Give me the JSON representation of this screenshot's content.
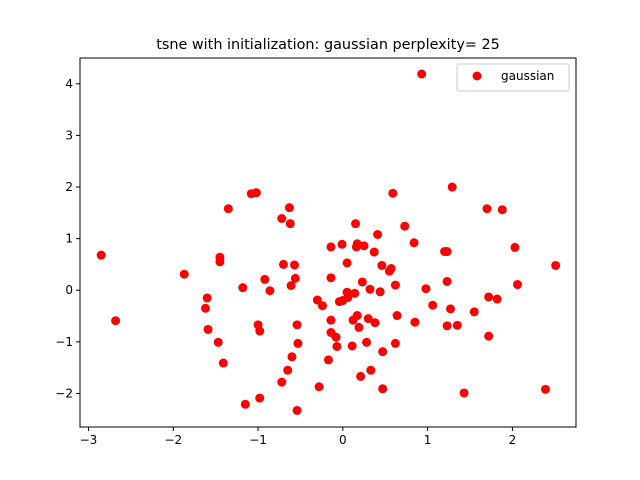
{
  "chart_data": {
    "type": "scatter",
    "title": "tsne with initialization: gaussian perplexity= 25",
    "xlabel": "",
    "ylabel": "",
    "xlim": [
      -3.1,
      2.75
    ],
    "ylim": [
      -2.65,
      4.5
    ],
    "xticks": [
      {
        "value": -3,
        "label": "−3"
      },
      {
        "value": -2,
        "label": "−2"
      },
      {
        "value": -1,
        "label": "−1"
      },
      {
        "value": 0,
        "label": "0"
      },
      {
        "value": 1,
        "label": "1"
      },
      {
        "value": 2,
        "label": "2"
      }
    ],
    "yticks": [
      {
        "value": -2,
        "label": "−2"
      },
      {
        "value": -1,
        "label": "−1"
      },
      {
        "value": 0,
        "label": "0"
      },
      {
        "value": 1,
        "label": "1"
      },
      {
        "value": 2,
        "label": "2"
      },
      {
        "value": 3,
        "label": "3"
      },
      {
        "value": 4,
        "label": "4"
      }
    ],
    "grid": false,
    "legend": {
      "position": "top-right",
      "entries": [
        "gaussian"
      ]
    },
    "series": [
      {
        "name": "gaussian",
        "color": "#ff0000",
        "points": [
          [
            0.93,
            4.19
          ],
          [
            -2.85,
            0.68
          ],
          [
            -2.68,
            -0.59
          ],
          [
            -1.87,
            0.31
          ],
          [
            -1.62,
            -0.35
          ],
          [
            -1.6,
            -0.15
          ],
          [
            -1.59,
            -0.76
          ],
          [
            -1.45,
            0.64
          ],
          [
            -1.45,
            0.55
          ],
          [
            -1.47,
            -1.01
          ],
          [
            -1.41,
            -1.41
          ],
          [
            -1.35,
            1.58
          ],
          [
            -1.18,
            0.05
          ],
          [
            -1.15,
            -2.21
          ],
          [
            -1.08,
            1.87
          ],
          [
            -1.02,
            1.89
          ],
          [
            -1.0,
            -0.67
          ],
          [
            -0.98,
            -0.79
          ],
          [
            -0.98,
            -2.09
          ],
          [
            -0.92,
            0.21
          ],
          [
            -0.86,
            -0.01
          ],
          [
            -0.72,
            1.39
          ],
          [
            -0.7,
            0.5
          ],
          [
            -0.72,
            -1.78
          ],
          [
            -0.65,
            -1.55
          ],
          [
            -0.63,
            1.6
          ],
          [
            -0.62,
            1.29
          ],
          [
            -0.61,
            0.09
          ],
          [
            -0.6,
            -1.29
          ],
          [
            -0.57,
            0.49
          ],
          [
            -0.56,
            0.23
          ],
          [
            -0.54,
            -0.67
          ],
          [
            -0.53,
            -1.03
          ],
          [
            -0.54,
            -2.33
          ],
          [
            -0.3,
            -0.19
          ],
          [
            -0.28,
            -1.87
          ],
          [
            -0.24,
            -0.3
          ],
          [
            -0.17,
            -1.35
          ],
          [
            -0.14,
            0.84
          ],
          [
            -0.14,
            0.24
          ],
          [
            -0.14,
            -0.58
          ],
          [
            -0.14,
            -0.82
          ],
          [
            -0.08,
            -0.91
          ],
          [
            -0.07,
            -1.09
          ],
          [
            -0.04,
            -0.22
          ],
          [
            -0.01,
            0.89
          ],
          [
            0.0,
            -0.2
          ],
          [
            0.05,
            0.53
          ],
          [
            0.05,
            -0.04
          ],
          [
            0.06,
            -0.14
          ],
          [
            0.11,
            -1.08
          ],
          [
            0.12,
            -0.58
          ],
          [
            0.14,
            -0.06
          ],
          [
            0.15,
            1.29
          ],
          [
            0.16,
            0.84
          ],
          [
            0.17,
            0.9
          ],
          [
            0.17,
            -0.49
          ],
          [
            0.19,
            -0.72
          ],
          [
            0.21,
            -1.67
          ],
          [
            0.23,
            0.16
          ],
          [
            0.25,
            0.86
          ],
          [
            0.28,
            -1.01
          ],
          [
            0.3,
            -0.55
          ],
          [
            0.32,
            0.02
          ],
          [
            0.33,
            -1.55
          ],
          [
            0.37,
            0.74
          ],
          [
            0.38,
            -0.63
          ],
          [
            0.41,
            1.08
          ],
          [
            0.44,
            -0.03
          ],
          [
            0.46,
            0.48
          ],
          [
            0.47,
            -1.19
          ],
          [
            0.47,
            -1.91
          ],
          [
            0.55,
            0.37
          ],
          [
            0.57,
            0.42
          ],
          [
            0.59,
            1.88
          ],
          [
            0.62,
            0.1
          ],
          [
            0.62,
            -1.03
          ],
          [
            0.64,
            -0.49
          ],
          [
            0.73,
            1.24
          ],
          [
            0.84,
            0.92
          ],
          [
            0.85,
            -0.62
          ],
          [
            0.98,
            0.03
          ],
          [
            1.06,
            -0.29
          ],
          [
            1.2,
            0.75
          ],
          [
            1.23,
            0.75
          ],
          [
            1.23,
            0.17
          ],
          [
            1.23,
            -0.69
          ],
          [
            1.27,
            -0.36
          ],
          [
            1.29,
            2.0
          ],
          [
            1.35,
            -0.68
          ],
          [
            1.43,
            -1.99
          ],
          [
            1.55,
            -0.42
          ],
          [
            1.7,
            1.58
          ],
          [
            1.72,
            -0.13
          ],
          [
            1.72,
            -0.89
          ],
          [
            1.82,
            -0.17
          ],
          [
            1.88,
            1.56
          ],
          [
            2.03,
            0.83
          ],
          [
            2.06,
            0.11
          ],
          [
            2.39,
            -1.92
          ],
          [
            2.51,
            0.48
          ]
        ]
      }
    ]
  }
}
